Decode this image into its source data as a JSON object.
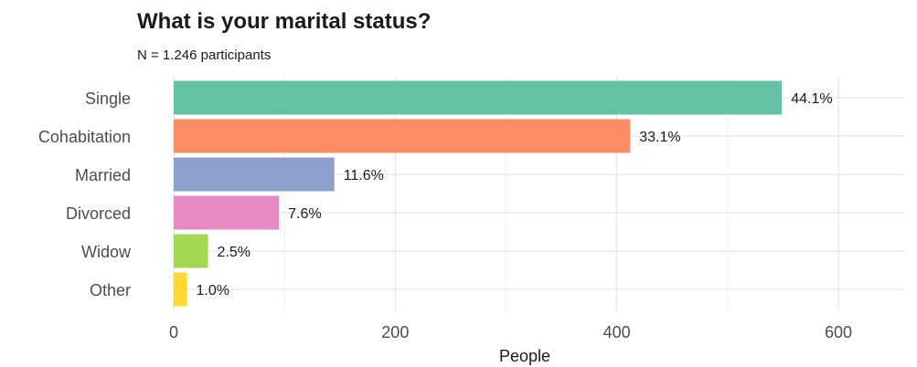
{
  "chart_data": {
    "type": "bar",
    "orientation": "horizontal",
    "title": "What is your marital status?",
    "subtitle": "N = 1.246 participants",
    "xlabel": "People",
    "ylabel": "",
    "xlim": [
      0,
      650
    ],
    "xticks": [
      0,
      200,
      400,
      600
    ],
    "grid": true,
    "legend": "none",
    "categories": [
      "Single",
      "Cohabitation",
      "Married",
      "Divorced",
      "Widow",
      "Other"
    ],
    "values": [
      549,
      412,
      145,
      95,
      31,
      12
    ],
    "labels": [
      "44.1%",
      "33.1%",
      "11.6%",
      "7.6%",
      "2.5%",
      "1.0%"
    ],
    "colors": [
      "#66c2a5",
      "#fc8d62",
      "#8da0cb",
      "#e78ac3",
      "#a6d854",
      "#ffd92f"
    ]
  }
}
